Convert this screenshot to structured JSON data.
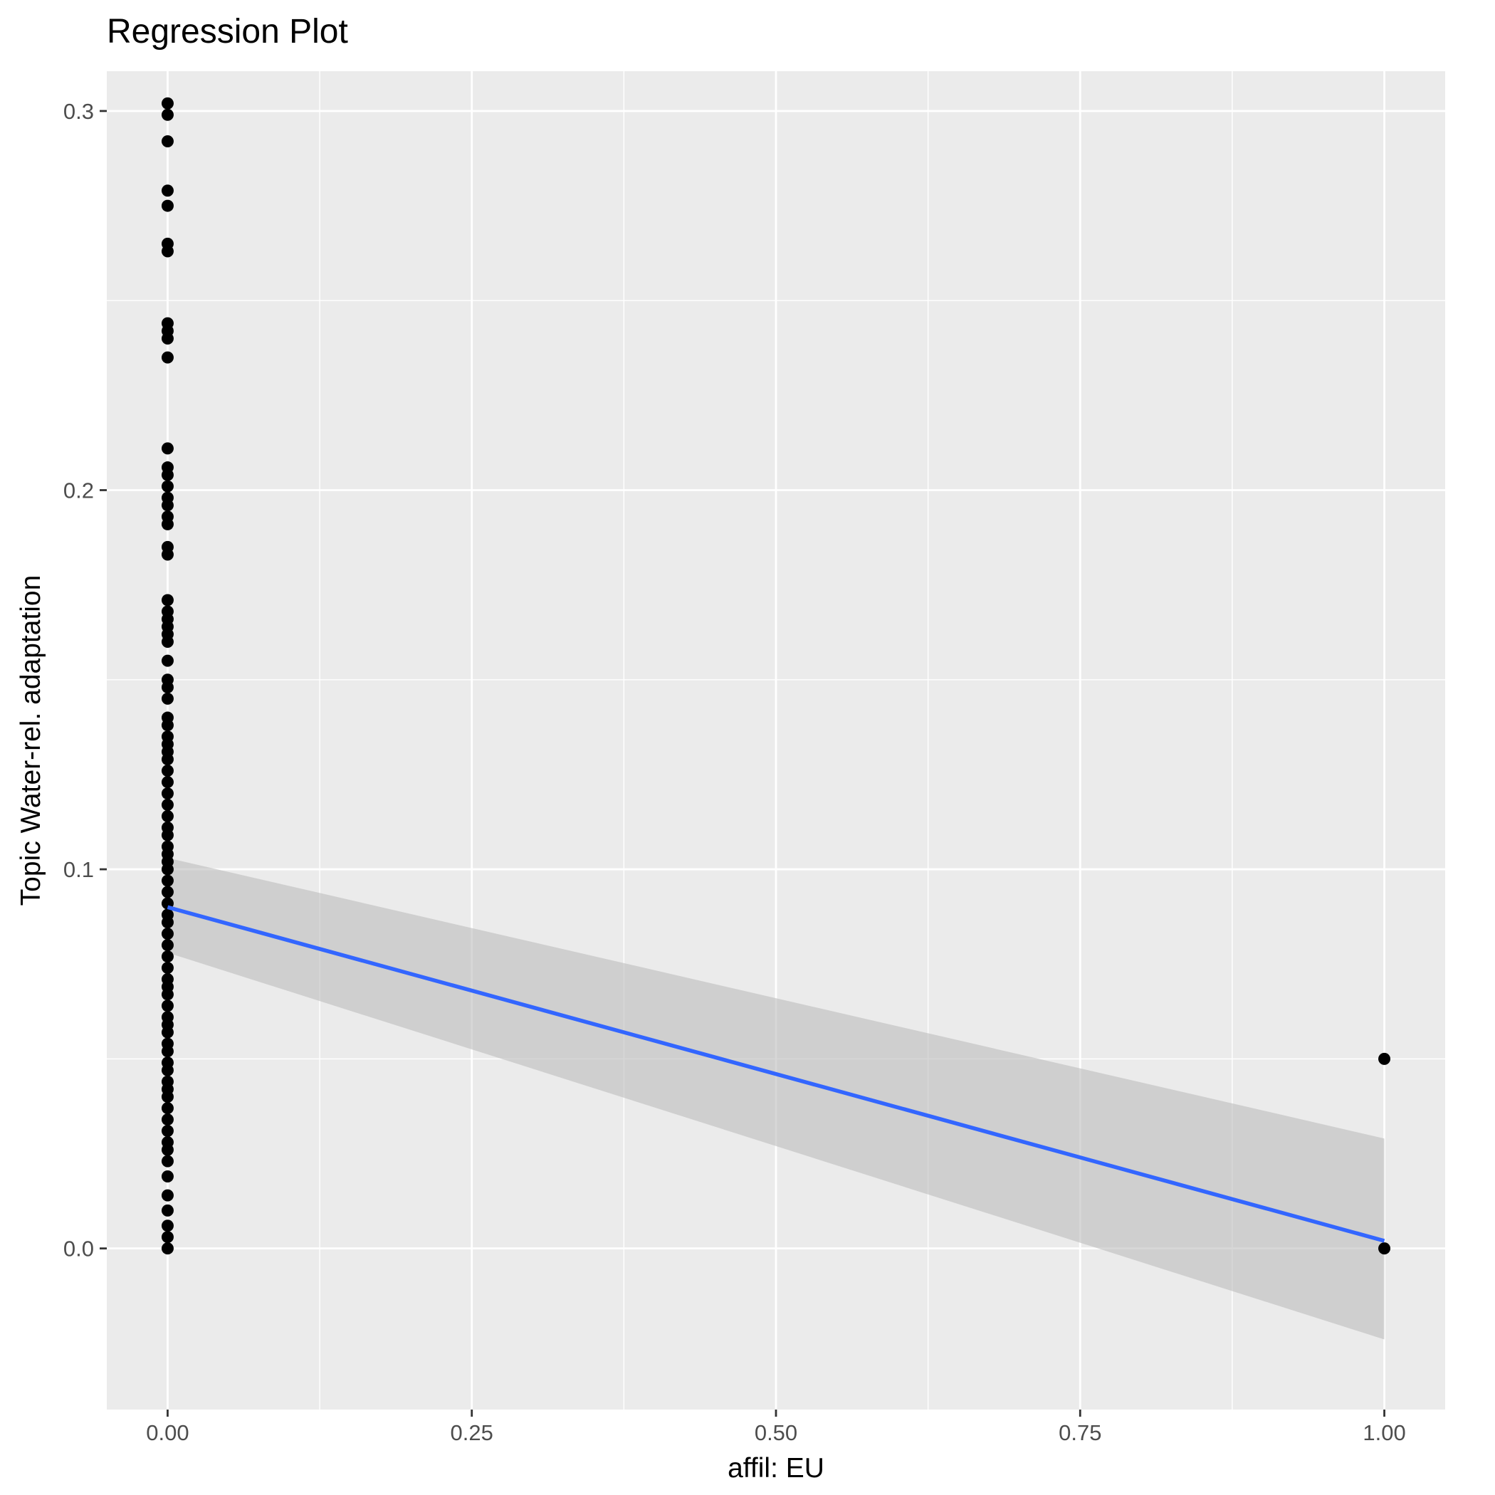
{
  "chart_data": {
    "type": "scatter",
    "title": "Regression Plot",
    "xlabel": "affil: EU",
    "ylabel": "Topic Water-rel. adaptation",
    "xlim": [
      -0.05,
      1.05
    ],
    "ylim": [
      -0.0425,
      0.3105
    ],
    "x_ticks": [
      0.0,
      0.25,
      0.5,
      0.75,
      1.0
    ],
    "x_tick_labels": [
      "0.00",
      "0.25",
      "0.50",
      "0.75",
      "1.00"
    ],
    "y_ticks": [
      0.0,
      0.1,
      0.2,
      0.3
    ],
    "y_tick_labels": [
      "0.0",
      "0.1",
      "0.2",
      "0.3"
    ],
    "grid": true,
    "legend": "none",
    "colors": {
      "panel": "#ebebeb",
      "grid": "#ffffff",
      "points": "#000000",
      "line": "#3366ff",
      "ribbon": "#bfbfbf"
    },
    "points": {
      "x": [
        0,
        0,
        0,
        0,
        0,
        0,
        0,
        0,
        0,
        0,
        0,
        0,
        0,
        0,
        0,
        0,
        0,
        0,
        0,
        0,
        0,
        0,
        0,
        0,
        0,
        0,
        0,
        0,
        0,
        0,
        0,
        0,
        0,
        0,
        0,
        0,
        0,
        0,
        0,
        0,
        0,
        0,
        0,
        0,
        0,
        0,
        0,
        0,
        0,
        0,
        0,
        0,
        0,
        0,
        0,
        0,
        0,
        0,
        0,
        0,
        0,
        0,
        0,
        0,
        0,
        0,
        0,
        0,
        0,
        0,
        0,
        0,
        0,
        0,
        0,
        0,
        0,
        0,
        0,
        0,
        0,
        0,
        0,
        1,
        1
      ],
      "y": [
        0.302,
        0.299,
        0.292,
        0.279,
        0.275,
        0.265,
        0.263,
        0.244,
        0.242,
        0.24,
        0.235,
        0.211,
        0.206,
        0.204,
        0.201,
        0.198,
        0.196,
        0.193,
        0.191,
        0.185,
        0.183,
        0.171,
        0.168,
        0.166,
        0.164,
        0.162,
        0.16,
        0.155,
        0.15,
        0.148,
        0.145,
        0.14,
        0.138,
        0.135,
        0.133,
        0.131,
        0.129,
        0.126,
        0.123,
        0.12,
        0.117,
        0.114,
        0.111,
        0.109,
        0.106,
        0.104,
        0.102,
        0.1,
        0.097,
        0.094,
        0.091,
        0.088,
        0.086,
        0.083,
        0.08,
        0.077,
        0.074,
        0.071,
        0.069,
        0.067,
        0.064,
        0.061,
        0.059,
        0.057,
        0.054,
        0.052,
        0.049,
        0.047,
        0.044,
        0.042,
        0.04,
        0.037,
        0.034,
        0.031,
        0.028,
        0.026,
        0.023,
        0.019,
        0.014,
        0.01,
        0.006,
        0.003,
        0.0,
        0.05,
        0.0
      ]
    },
    "regression": {
      "x": [
        0,
        1
      ],
      "y": [
        0.09,
        0.002
      ],
      "ci_lower": [
        0.078,
        -0.024
      ],
      "ci_upper": [
        0.103,
        0.029
      ]
    }
  }
}
